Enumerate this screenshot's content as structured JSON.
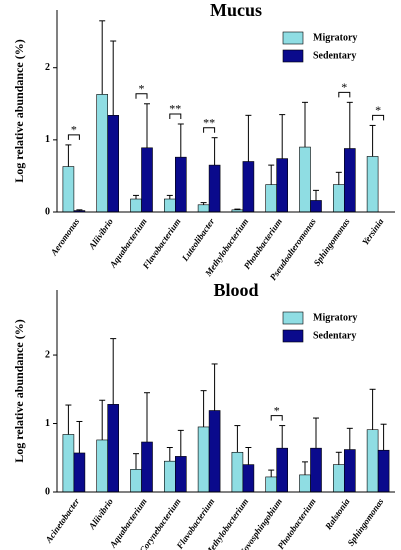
{
  "chart_data": [
    {
      "type": "bar",
      "title": "Mucus",
      "y_label": "Log relative abundance (%)",
      "categories": [
        "Aeromonas",
        "Aliivibrio",
        "Aquabacterium",
        "Flavobacterium",
        "Luteolibacter",
        "Methylobacterium",
        "Photobacterium",
        "Pseudoalteromonas",
        "Sphingomonas",
        "Yersinia"
      ],
      "series": [
        {
          "name": "Migratory",
          "color": "#8fdde3",
          "values": [
            0.63,
            1.63,
            0.18,
            0.18,
            0.1,
            0.03,
            0.38,
            0.9,
            0.38,
            0.77
          ],
          "errors": [
            0.3,
            1.02,
            0.05,
            0.05,
            0.03,
            0.01,
            0.27,
            0.62,
            0.17,
            0.43
          ]
        },
        {
          "name": "Sedentary",
          "color": "#0a0a8c",
          "values": [
            0.02,
            1.34,
            0.89,
            0.76,
            0.65,
            0.7,
            0.74,
            0.16,
            0.88,
            0
          ],
          "errors": [
            0.01,
            1.03,
            0.61,
            0.46,
            0.38,
            0.64,
            0.61,
            0.14,
            0.64,
            null
          ]
        }
      ],
      "significance": [
        "*",
        null,
        "*",
        "**",
        "**",
        null,
        null,
        null,
        "*",
        "*"
      ],
      "ylim": [
        0,
        2.8
      ],
      "yticks": [
        0,
        1,
        2
      ],
      "legend": "upper right"
    },
    {
      "type": "bar",
      "title": "Blood",
      "y_label": "Log relative abundance (%)",
      "categories": [
        "Acinetobacter",
        "Aliivibrio",
        "Aquabacterium",
        "Corynebacterium",
        "Flavobacterium",
        "Methylobacterium",
        "Novosphingobium",
        "Photobacterium",
        "Ralstonia",
        "Sphingomonas"
      ],
      "series": [
        {
          "name": "Migratory",
          "color": "#8fdde3",
          "values": [
            0.84,
            0.76,
            0.33,
            0.45,
            0.95,
            0.58,
            0.22,
            0.25,
            0.4,
            0.91
          ],
          "errors": [
            0.43,
            0.58,
            0.23,
            0.2,
            0.53,
            0.39,
            0.1,
            0.19,
            0.18,
            0.59
          ]
        },
        {
          "name": "Sedentary",
          "color": "#0a0a8c",
          "values": [
            0.57,
            1.28,
            0.73,
            0.52,
            1.19,
            0.4,
            0.64,
            0.64,
            0.62,
            0.61
          ],
          "errors": [
            0.46,
            0.96,
            0.72,
            0.38,
            0.68,
            0.25,
            0.33,
            0.44,
            0.31,
            0.38
          ]
        }
      ],
      "significance": [
        null,
        null,
        null,
        null,
        null,
        null,
        "*",
        null,
        null,
        null
      ],
      "ylim": [
        0,
        2.95
      ],
      "yticks": [
        0,
        1,
        2
      ],
      "legend": "upper right"
    }
  ]
}
